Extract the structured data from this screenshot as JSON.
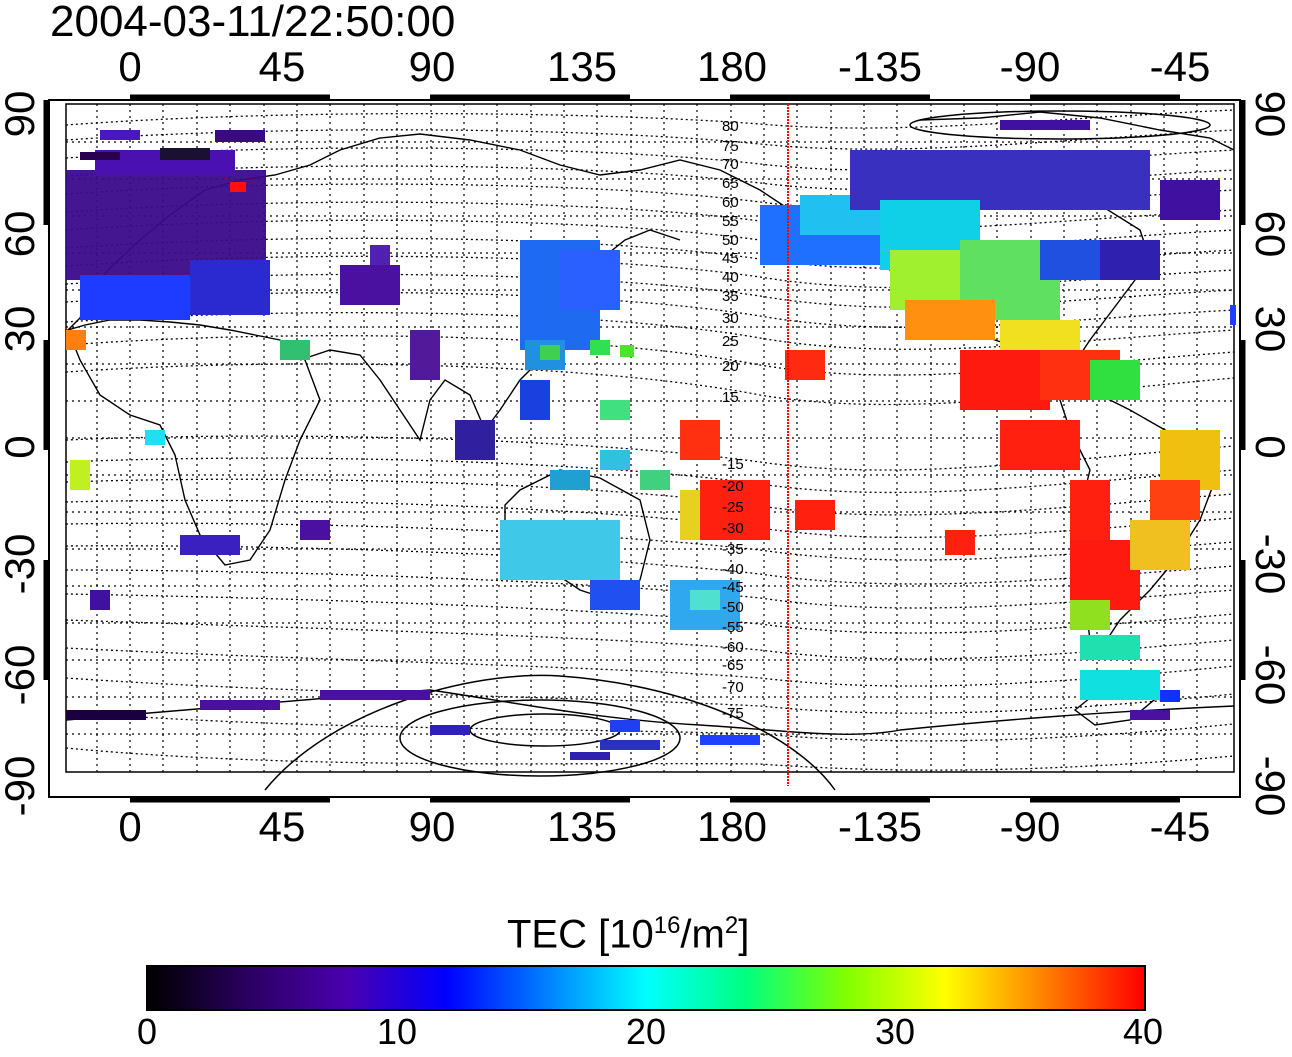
{
  "timestamp": "2004-03-11/22:50:00",
  "map": {
    "x_ticks": [
      "0",
      "45",
      "90",
      "135",
      "180",
      "-135",
      "-90",
      "-45"
    ],
    "y_ticks": [
      "90",
      "60",
      "30",
      "0",
      "-30",
      "-60",
      "-90"
    ],
    "contour_labels": [
      "80",
      "75",
      "70",
      "65",
      "60",
      "55",
      "50",
      "45",
      "40",
      "35",
      "30",
      "25",
      "20",
      "15",
      "-15",
      "-20",
      "-25",
      "-30",
      "-35",
      "-40",
      "-45",
      "-50",
      "-55",
      "-60",
      "-65",
      "-70",
      "-75"
    ],
    "meridian_line_color": "#ff0000"
  },
  "colorbar": {
    "title": "TEC  [10",
    "title_sup1": "16",
    "title_mid": "/m",
    "title_sup2": "2",
    "title_end": "]",
    "ticks": [
      "0",
      "10",
      "20",
      "30",
      "40"
    ],
    "range": [
      0,
      40
    ],
    "colormap": [
      "#000000",
      "#2a0060",
      "#4a00b0",
      "#0000ff",
      "#0080ff",
      "#00ffff",
      "#00ff80",
      "#80ff00",
      "#ffff00",
      "#ff8000",
      "#ff0000"
    ]
  }
}
